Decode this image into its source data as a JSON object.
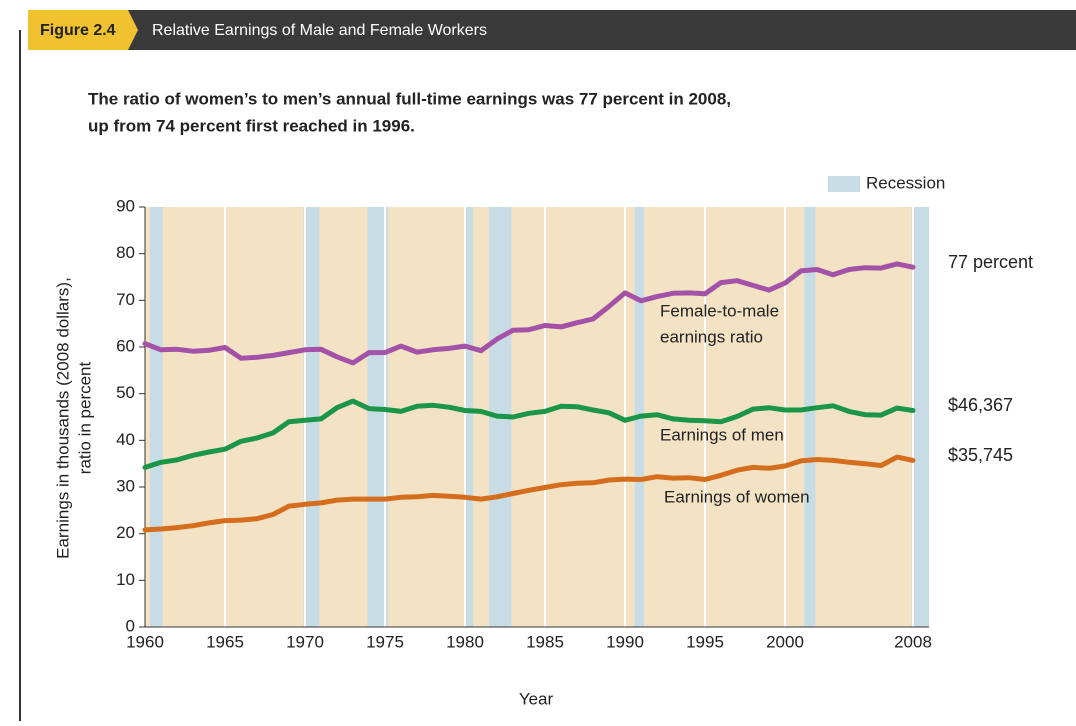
{
  "chart_data": {
    "type": "line",
    "figure_label": "Figure 2.4",
    "title": "Relative Earnings of Male and Female Workers",
    "subtitle": [
      "The ratio of women’s to men’s annual full-time earnings was 77 percent in 2008,",
      "up from 74 percent first reached in 1996."
    ],
    "y_label": [
      "Earnings in thousands (2008 dollars),",
      "ratio in percent"
    ],
    "x_label": "Year",
    "x": [
      1960,
      1961,
      1962,
      1963,
      1964,
      1965,
      1966,
      1967,
      1968,
      1969,
      1970,
      1971,
      1972,
      1973,
      1974,
      1975,
      1976,
      1977,
      1978,
      1979,
      1980,
      1981,
      1982,
      1983,
      1984,
      1985,
      1986,
      1987,
      1988,
      1989,
      1990,
      1991,
      1992,
      1993,
      1994,
      1995,
      1996,
      1997,
      1998,
      1999,
      2000,
      2001,
      2002,
      2003,
      2004,
      2005,
      2006,
      2007,
      2008
    ],
    "series": [
      {
        "name": [
          "Female-to-male",
          "earnings ratio"
        ],
        "color": "#a452a8",
        "end_label": "77 percent",
        "values": [
          60.7,
          59.4,
          59.5,
          59.1,
          59.3,
          59.9,
          57.6,
          57.8,
          58.2,
          58.8,
          59.4,
          59.5,
          57.9,
          56.6,
          58.8,
          58.8,
          60.2,
          58.9,
          59.4,
          59.7,
          60.2,
          59.2,
          61.7,
          63.6,
          63.7,
          64.6,
          64.3,
          65.2,
          66.0,
          68.7,
          71.6,
          69.9,
          70.8,
          71.5,
          71.6,
          71.4,
          73.8,
          74.2,
          73.2,
          72.2,
          73.7,
          76.3,
          76.6,
          75.5,
          76.6,
          77.0,
          76.9,
          77.8,
          77.1
        ]
      },
      {
        "name": "Earnings of men",
        "color": "#1b9548",
        "end_label": "$46,367",
        "values": [
          34.2,
          35.3,
          35.8,
          36.8,
          37.5,
          38.1,
          39.8,
          40.5,
          41.6,
          44.0,
          44.3,
          44.6,
          47.0,
          48.4,
          46.8,
          46.6,
          46.2,
          47.3,
          47.5,
          47.1,
          46.4,
          46.2,
          45.2,
          45.0,
          45.8,
          46.2,
          47.3,
          47.2,
          46.5,
          45.9,
          44.3,
          45.2,
          45.5,
          44.6,
          44.3,
          44.2,
          44.0,
          45.1,
          46.7,
          47.0,
          46.5,
          46.5,
          47.0,
          47.4,
          46.2,
          45.5,
          45.4,
          46.9,
          46.4
        ]
      },
      {
        "name": "Earnings of women",
        "color": "#d56d1f",
        "end_label": "$35,745",
        "values": [
          20.8,
          21.0,
          21.3,
          21.7,
          22.3,
          22.8,
          22.9,
          23.2,
          24.1,
          25.9,
          26.3,
          26.6,
          27.2,
          27.4,
          27.4,
          27.4,
          27.8,
          27.9,
          28.2,
          28.0,
          27.8,
          27.4,
          27.9,
          28.6,
          29.3,
          29.9,
          30.5,
          30.8,
          30.9,
          31.5,
          31.7,
          31.6,
          32.2,
          31.9,
          32.0,
          31.6,
          32.5,
          33.6,
          34.2,
          34.0,
          34.5,
          35.6,
          35.9,
          35.7,
          35.3,
          35.0,
          34.6,
          36.4,
          35.7
        ]
      }
    ],
    "recession_label": "Recession",
    "recession_color": "#c8dce5",
    "background_color": "#f3e3c4",
    "recessions": [
      [
        1960.3,
        1961.1
      ],
      [
        1969.9,
        1970.9
      ],
      [
        1973.9,
        1975.2
      ],
      [
        1980.0,
        1980.5
      ],
      [
        1981.5,
        1982.9
      ],
      [
        1990.6,
        1991.2
      ],
      [
        2001.2,
        2001.9
      ],
      [
        2007.9,
        2009.0
      ]
    ],
    "xlim": [
      1960,
      2009
    ],
    "ylim": [
      0,
      90
    ],
    "xticks": [
      1960,
      1965,
      1970,
      1975,
      1980,
      1985,
      1990,
      1995,
      2000,
      2008
    ],
    "yticks": [
      0,
      10,
      20,
      30,
      40,
      50,
      60,
      70,
      80,
      90
    ]
  }
}
